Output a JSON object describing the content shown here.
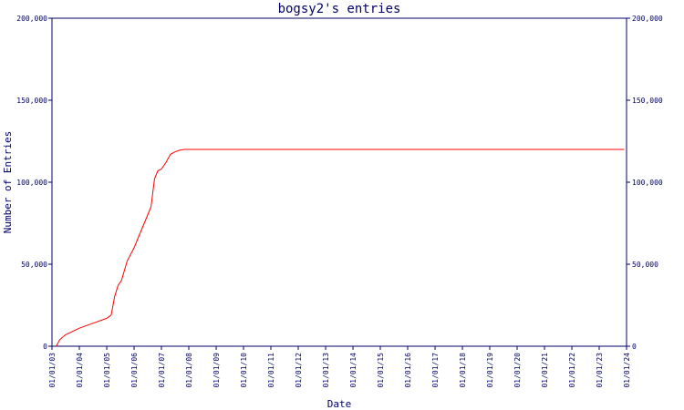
{
  "chart_data": {
    "type": "line",
    "title": "bogsy2's entries",
    "xlabel": "Date",
    "ylabel": "Number of Entries",
    "x_tick_labels": [
      "01/01/03",
      "01/01/04",
      "01/01/05",
      "01/01/06",
      "01/01/07",
      "01/01/08",
      "01/01/09",
      "01/01/10",
      "01/01/11",
      "01/01/12",
      "01/01/13",
      "01/01/14",
      "01/01/15",
      "01/01/16",
      "01/01/17",
      "01/01/18",
      "01/01/19",
      "01/01/20",
      "01/01/21",
      "01/01/22",
      "01/01/23",
      "01/01/24"
    ],
    "y_tick_labels": [
      "0",
      "50,000",
      "100,000",
      "150,000",
      "200,000"
    ],
    "y_ticks": [
      0,
      50000,
      100000,
      150000,
      200000
    ],
    "xlim": [
      "2003-01-01",
      "2024-01-01"
    ],
    "ylim": [
      0,
      200000
    ],
    "grid": false,
    "right_axis": true,
    "colors": {
      "line": "#ff0000",
      "axis": "#000066",
      "text": "#000066"
    },
    "series": [
      {
        "x": [
          "2003-03-01",
          "2003-04-15",
          "2003-07-01",
          "2003-10-01",
          "2004-01-01",
          "2004-07-01",
          "2005-01-01",
          "2005-03-01",
          "2005-04-15",
          "2005-06-01",
          "2005-07-15",
          "2005-10-01",
          "2006-01-01",
          "2006-04-01",
          "2006-07-01",
          "2006-08-15",
          "2006-10-01",
          "2006-11-15",
          "2007-01-01",
          "2007-03-01",
          "2007-05-01",
          "2007-07-01",
          "2007-09-01",
          "2007-11-01",
          "2008-01-01",
          "2009-01-01",
          "2010-01-01",
          "2012-01-01",
          "2016-01-01",
          "2020-01-01",
          "2023-12-01"
        ],
        "y": [
          0,
          4000,
          7000,
          9000,
          11000,
          14000,
          17000,
          19000,
          30000,
          37000,
          40000,
          52000,
          60000,
          70000,
          80000,
          85000,
          102000,
          107000,
          108000,
          112000,
          117000,
          118500,
          119500,
          120000,
          120000,
          120000,
          120000,
          120000,
          120000,
          120000,
          120000
        ]
      }
    ]
  }
}
